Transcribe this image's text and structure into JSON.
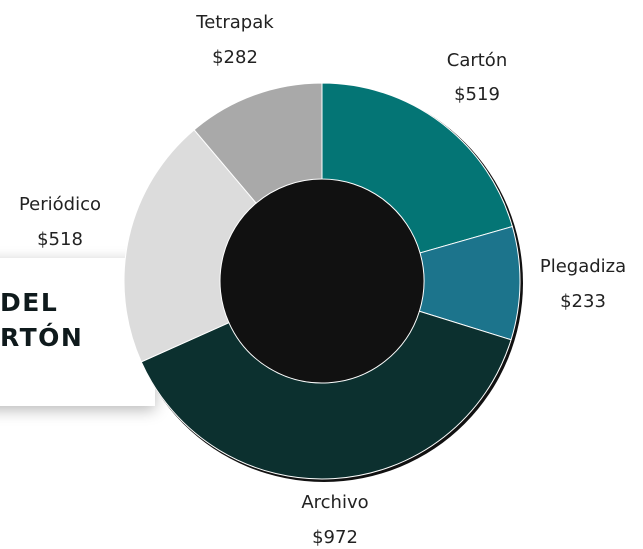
{
  "banner": {
    "lines": "DEL\nRTÓN"
  },
  "chart_data": {
    "type": "pie",
    "donut": true,
    "start_angle_deg": 0,
    "direction": "clockwise",
    "slices": [
      {
        "label": "Cartón",
        "value": 519,
        "value_label": "$519",
        "color": "#047575"
      },
      {
        "label": "Plegadiza",
        "value": 233,
        "value_label": "$233",
        "color": "#1c748c"
      },
      {
        "label": "Archivo",
        "value": 972,
        "value_label": "$972",
        "color": "#0c302f"
      },
      {
        "label": "Periódico",
        "value": 518,
        "value_label": "$518",
        "color": "#dcdcdc"
      },
      {
        "label": "Tetrapak",
        "value": 282,
        "value_label": "$282",
        "color": "#a9a9a9"
      }
    ]
  }
}
